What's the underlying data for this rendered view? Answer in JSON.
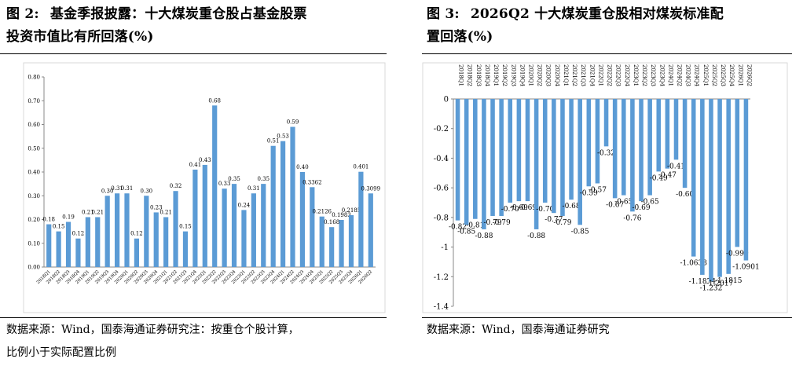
{
  "figures": [
    {
      "number": "图 2:",
      "title_line1": "基金季报披露：十大煤炭重仓股占基金股票",
      "title_line2": "投资市值比有所回落(%)",
      "source_line1": "数据来源：Wind，国泰海通证券研究注：按重仓个股计算，",
      "source_line2": "比例小于实际配置比例",
      "chart_data": {
        "type": "bar",
        "categories": [
          "2018Q1",
          "2018Q2",
          "2018Q3",
          "2018Q4",
          "2019Q1",
          "2019Q2",
          "2019Q3",
          "2019Q4",
          "2020Q1",
          "2020Q2",
          "2020Q3",
          "2020Q4",
          "2021Q1",
          "2021Q2",
          "2021Q3",
          "2021Q4",
          "2022Q1",
          "2022Q2",
          "2022Q3",
          "2022Q4",
          "2023Q1",
          "2023Q2",
          "2023Q3",
          "2023Q4",
          "2024Q1",
          "2024Q2",
          "2024Q3",
          "2024Q4",
          "2025Q1",
          "2025Q2",
          "2025Q3",
          "2025Q4",
          "2026Q1",
          "2026Q2"
        ],
        "values": [
          0.18,
          0.15,
          0.19,
          0.12,
          0.21,
          0.21,
          0.3,
          0.31,
          0.31,
          0.12,
          0.3,
          0.23,
          0.21,
          0.32,
          0.15,
          0.41,
          0.43,
          0.68,
          0.33,
          0.35,
          0.24,
          0.31,
          0.35,
          0.51,
          0.53,
          0.59,
          0.4,
          0.3362,
          0.2126,
          0.168,
          0.1983,
          0.2185,
          0.401,
          0.3099
        ],
        "data_labels": [
          "0.18",
          "0.15",
          "0.19",
          "0.12",
          "0.21",
          "0.21",
          "0.30",
          "0.31",
          "0.31",
          "0.12",
          "0.30",
          "0.23",
          "0.21",
          "0.32",
          "0.15",
          "0.41",
          "0.43",
          "0.68",
          "0.33",
          "0.35",
          "0.24",
          "0.31",
          "0.35",
          "0.51",
          "0.53",
          "0.59",
          "0.40",
          "0.3362",
          "0.2126",
          "0.168",
          "0.1983",
          "0.2185",
          "0.401",
          "0.3099"
        ],
        "ylim": [
          0,
          0.8
        ],
        "yticks": [
          0,
          0.1,
          0.2,
          0.3,
          0.4,
          0.5,
          0.6,
          0.7,
          0.8
        ],
        "ytick_labels": [
          "0.00",
          "0.10",
          "0.20",
          "0.30",
          "0.40",
          "0.50",
          "0.60",
          "0.70",
          "0.80"
        ],
        "xlabel": "",
        "ylabel": "",
        "grid": false,
        "legend": "none",
        "bar_color": "#5b9bd5"
      }
    },
    {
      "number": "图 3:",
      "title_line1": "2026Q2 十大煤炭重仓股相对煤炭标准配",
      "title_line2": "置回落(%)",
      "source_line1": "数据来源：Wind，国泰海通证券研究",
      "chart_data": {
        "type": "bar",
        "categories": [
          "2018Q1",
          "2018Q2",
          "2018Q3",
          "2018Q4",
          "2019Q1",
          "2019Q2",
          "2019Q3",
          "2019Q4",
          "2020Q1",
          "2020Q2",
          "2020Q3",
          "2020Q4",
          "2021Q1",
          "2021Q2",
          "2021Q3",
          "2021Q4",
          "2022Q1",
          "2022Q2",
          "2022Q3",
          "2022Q4",
          "2023Q1",
          "2023Q2",
          "2023Q3",
          "2023Q4",
          "2024Q1",
          "2024Q2",
          "2024Q3",
          "2024Q4",
          "2025Q1",
          "2025Q2",
          "2025Q3",
          "2025Q4",
          "2026Q1",
          "2026Q2"
        ],
        "values": [
          -0.82,
          -0.85,
          -0.81,
          -0.88,
          -0.79,
          -0.79,
          -0.7,
          -0.69,
          -0.69,
          -0.88,
          -0.7,
          -0.77,
          -0.79,
          -0.68,
          -0.85,
          -0.59,
          -0.57,
          -0.32,
          -0.67,
          -0.65,
          -0.76,
          -0.69,
          -0.65,
          -0.49,
          -0.47,
          -0.41,
          -0.6,
          -1.0638,
          -1.1874,
          -1.232,
          -1.2017,
          -1.1815,
          -0.999,
          -1.0901
        ],
        "data_labels": [
          "-0.82",
          "-0.85",
          "-0.81",
          "-0.88",
          "-0.79",
          "-0.79",
          "-0.70",
          "-0.69",
          "-0.69",
          "-0.88",
          "-0.70",
          "-0.77",
          "-0.79",
          "-0.68",
          "-0.85",
          "-0.59",
          "-0.57",
          "-0.32",
          "-0.67",
          "-0.65",
          "-0.76",
          "-0.69",
          "-0.65",
          "-0.49",
          "-0.47",
          "-0.41",
          "-0.60",
          "-1.0638",
          "-1.1874",
          "-1.232",
          "-1.2017",
          "-1.1815",
          "-0.999",
          "-1.0901"
        ],
        "ylim": [
          -1.4,
          0
        ],
        "yticks": [
          0,
          -0.2,
          -0.4,
          -0.6,
          -0.8,
          -1,
          -1.2,
          -1.4
        ],
        "ytick_labels": [
          "0",
          "-0.2",
          "-0.4",
          "-0.6",
          "-0.8",
          "-1",
          "-1.2",
          "-1.4"
        ],
        "xlabel": "",
        "ylabel": "",
        "grid": false,
        "legend": "none",
        "bar_color": "#5b9bd5"
      }
    }
  ]
}
